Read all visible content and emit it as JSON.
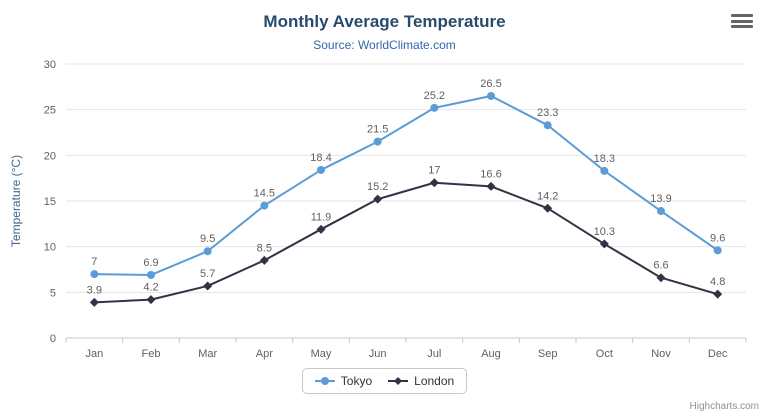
{
  "chart": {
    "title": "Monthly Average Temperature",
    "subtitle": "Source: WorldClimate.com",
    "credits": "Highcharts.com"
  },
  "chart_data": {
    "type": "line",
    "title": "Monthly Average Temperature",
    "subtitle": "Source: WorldClimate.com",
    "categories": [
      "Jan",
      "Feb",
      "Mar",
      "Apr",
      "May",
      "Jun",
      "Jul",
      "Aug",
      "Sep",
      "Oct",
      "Nov",
      "Dec"
    ],
    "series": [
      {
        "name": "Tokyo",
        "color": "#5b9cd6",
        "marker": "circle",
        "values": [
          7,
          6.9,
          9.5,
          14.5,
          18.4,
          21.5,
          25.2,
          26.5,
          23.3,
          18.3,
          13.9,
          9.6
        ]
      },
      {
        "name": "London",
        "color": "#2f3444",
        "marker": "diamond",
        "values": [
          3.9,
          4.2,
          5.7,
          8.5,
          11.9,
          15.2,
          17,
          16.6,
          14.2,
          10.3,
          6.6,
          4.8
        ]
      }
    ],
    "xlabel": "",
    "ylabel": "Temperature (°C)",
    "ylim": [
      0,
      30
    ],
    "ytick_step": 5,
    "grid": true,
    "data_labels": true,
    "legend_position": "bottom"
  },
  "colors": {
    "grid": "#e6e6e6",
    "axis_line": "#c9c9c9",
    "tick": "#c9c9c9",
    "axis_label": "#606060",
    "data_label": "#606060"
  }
}
